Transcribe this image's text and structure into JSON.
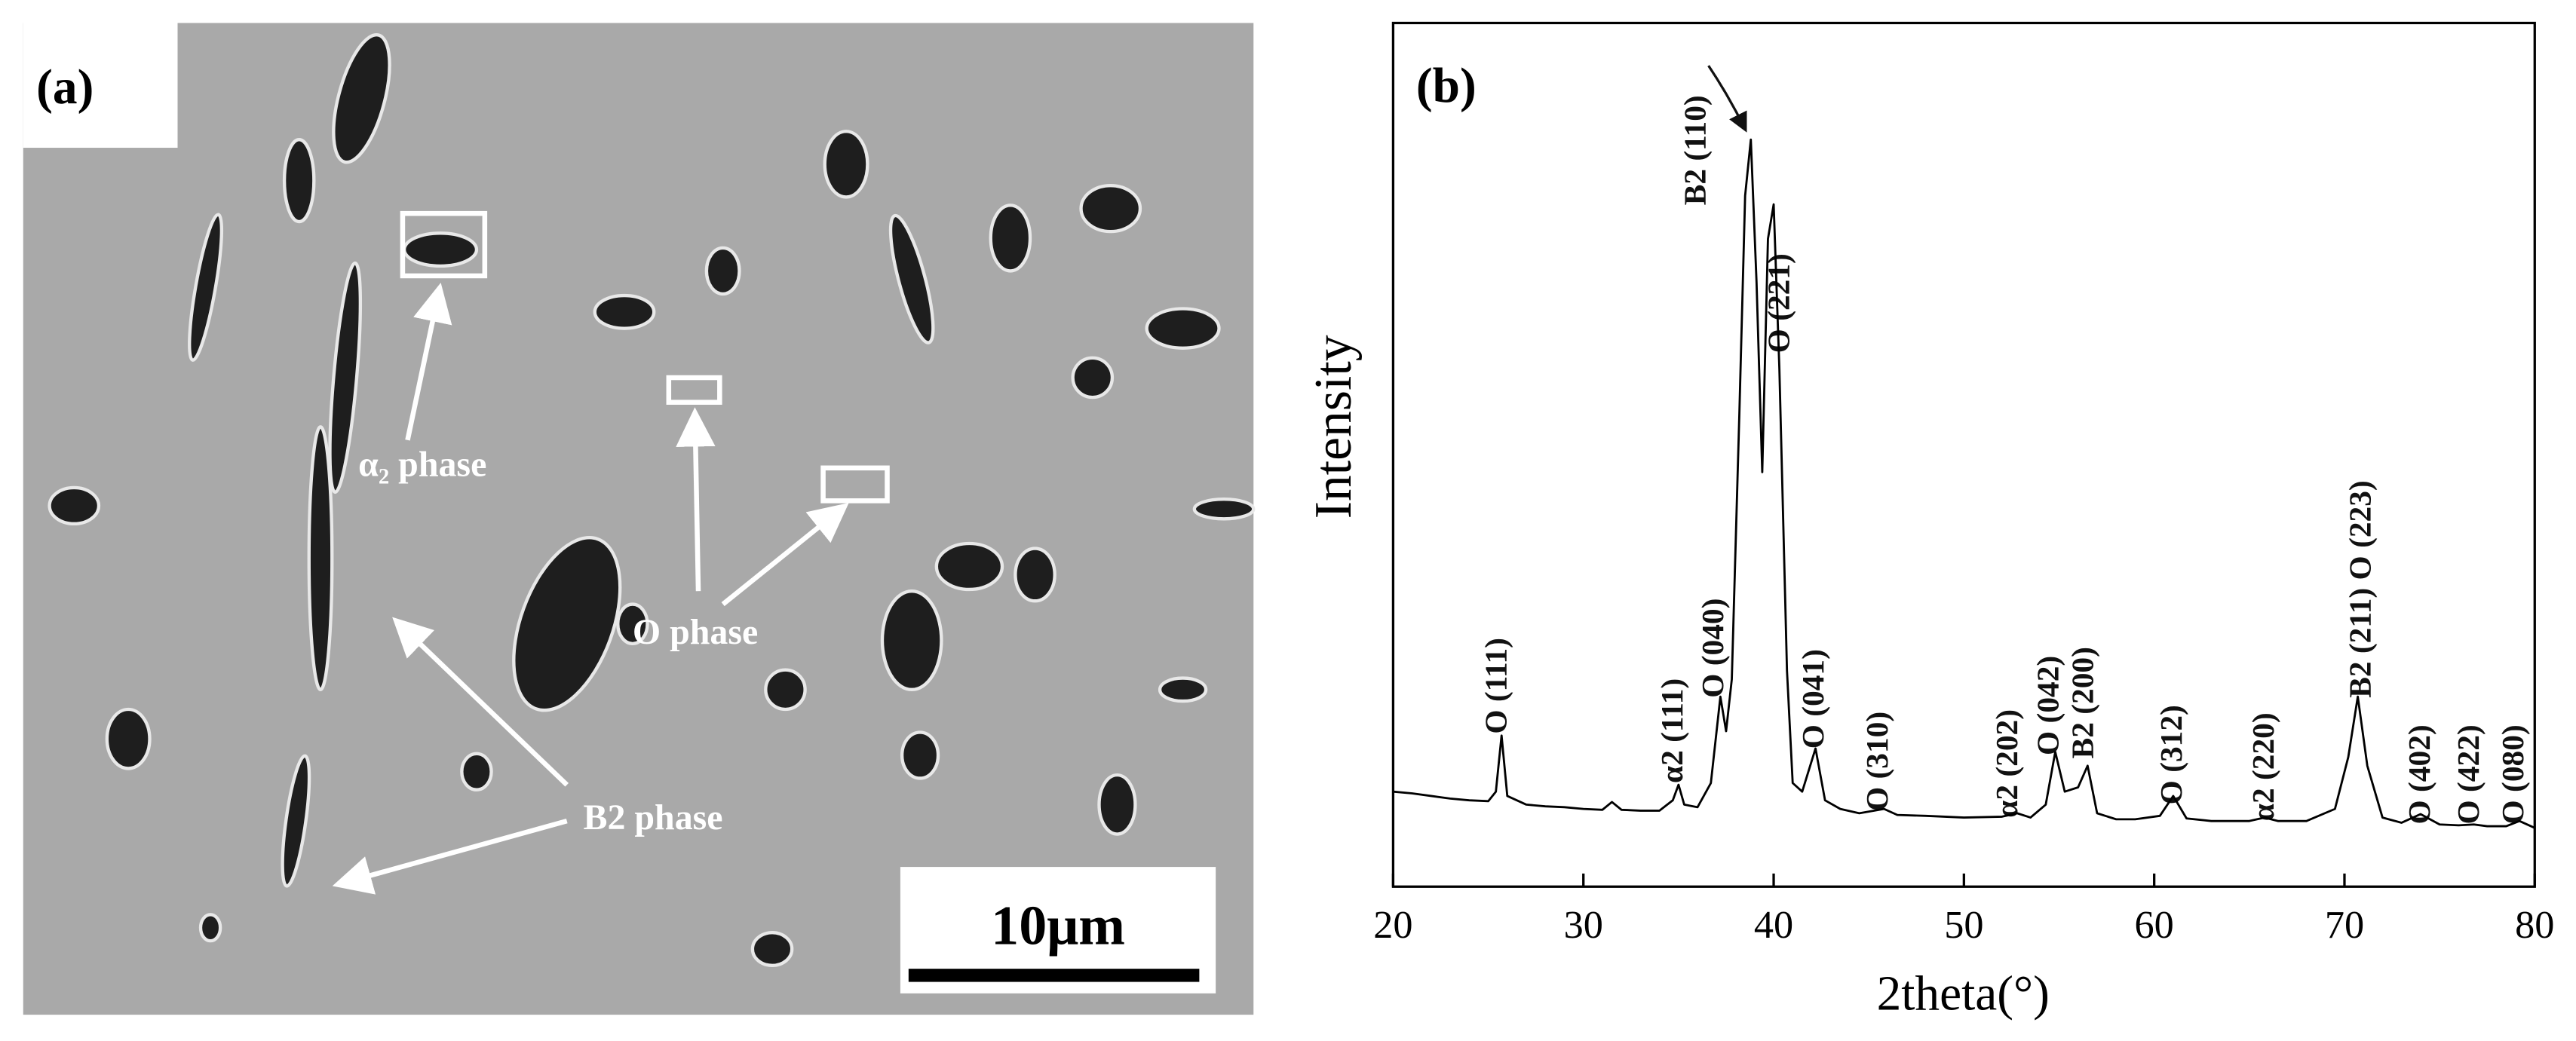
{
  "panel_a": {
    "label": "(a)",
    "annotations": [
      "α₂ phase",
      "O phase",
      "B2 phase"
    ],
    "scale_bar": "10μm"
  },
  "chart_data": {
    "type": "line",
    "panel_label": "(b)",
    "x_label": "2theta(°)",
    "y_label": "Intensity",
    "x": [
      20,
      21,
      22,
      23,
      24,
      25,
      25.4,
      25.7,
      26,
      27,
      28,
      29,
      30,
      31,
      31.5,
      32,
      33,
      34,
      34.7,
      35,
      35.3,
      36,
      36.7,
      37.2,
      37.5,
      37.8,
      38.2,
      38.5,
      38.8,
      39.1,
      39.4,
      39.7,
      40,
      40.3,
      40.7,
      41,
      41.5,
      42.2,
      42.7,
      43.5,
      44.5,
      45.8,
      46.5,
      48,
      50,
      52,
      52.8,
      53.5,
      54.3,
      54.8,
      55.3,
      56,
      56.5,
      57,
      58,
      59,
      60.3,
      61,
      61.7,
      63,
      65,
      65.8,
      66.5,
      68,
      69.5,
      70.2,
      70.7,
      71.2,
      72,
      73,
      74,
      75,
      76,
      76.8,
      77.5,
      78.5,
      79.2,
      80
    ],
    "series": [
      {
        "color": "#000000",
        "values": [
          11,
          10.8,
          10.5,
          10.2,
          10,
          9.9,
          11,
          17.5,
          10.5,
          9.5,
          9.3,
          9.2,
          9,
          8.9,
          9.8,
          8.9,
          8.8,
          8.8,
          10,
          11.8,
          9.5,
          9.2,
          12,
          22,
          18,
          24,
          55,
          80,
          86.5,
          70,
          48,
          75,
          79,
          60,
          25,
          12,
          11,
          16,
          10,
          9,
          8.5,
          9,
          8.3,
          8.2,
          8,
          8.1,
          8.5,
          8,
          9.5,
          15.6,
          11,
          11.5,
          14,
          8.5,
          7.8,
          7.8,
          8.2,
          10.5,
          7.9,
          7.6,
          7.6,
          8,
          7.6,
          7.6,
          9,
          15,
          22,
          14,
          8,
          7.4,
          8.4,
          7.2,
          7.1,
          7.2,
          7,
          7,
          7.6,
          6.8
        ]
      }
    ],
    "xlim": [
      20,
      80
    ],
    "ylim": [
      0,
      100
    ],
    "xticks": [
      20,
      30,
      40,
      50,
      60,
      70,
      80
    ],
    "annotations": [
      "O (111)",
      "α2 (111)",
      "O (040)",
      "B2 (110)",
      "O (221)",
      "O (041)",
      "O (310)",
      "α2 (202)",
      "O (042)",
      "B2 (200)",
      "O (312)",
      "α2 (220)",
      "B2 (211) O (223)",
      "O (402)",
      "O (422)",
      "O (080)"
    ]
  }
}
